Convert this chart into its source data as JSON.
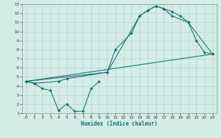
{
  "xlabel": "Humidex (Indice chaleur)",
  "xlim": [
    -0.5,
    23.5
  ],
  "ylim": [
    1,
    13
  ],
  "xticks": [
    0,
    1,
    2,
    3,
    4,
    5,
    6,
    7,
    8,
    9,
    10,
    11,
    12,
    13,
    14,
    15,
    16,
    17,
    18,
    19,
    20,
    21,
    22,
    23
  ],
  "yticks": [
    1,
    2,
    3,
    4,
    5,
    6,
    7,
    8,
    9,
    10,
    11,
    12,
    13
  ],
  "background_color": "#d4ece6",
  "grid_color": "#aacfc8",
  "line_color": "#1a7070",
  "curve1_x": [
    0,
    1,
    2,
    3,
    4,
    5,
    6,
    7,
    8,
    9
  ],
  "curve1_y": [
    4.5,
    4.3,
    3.7,
    3.5,
    1.3,
    2.0,
    1.2,
    1.2,
    3.7,
    4.5
  ],
  "curve2_x": [
    0,
    1,
    4,
    5,
    10,
    11,
    13,
    14,
    15,
    16,
    17,
    18,
    19,
    20,
    21,
    22,
    23
  ],
  "curve2_y": [
    4.5,
    4.3,
    4.5,
    4.8,
    5.5,
    8.0,
    9.8,
    11.7,
    12.3,
    12.8,
    12.5,
    12.2,
    11.7,
    11.0,
    9.0,
    7.7,
    7.5
  ],
  "curve3_x": [
    0,
    10,
    14,
    15,
    16,
    17,
    18,
    20,
    23
  ],
  "curve3_y": [
    4.5,
    5.5,
    11.7,
    12.3,
    12.8,
    12.5,
    11.7,
    11.0,
    7.5
  ],
  "line4_x": [
    0,
    23
  ],
  "line4_y": [
    4.5,
    7.5
  ]
}
